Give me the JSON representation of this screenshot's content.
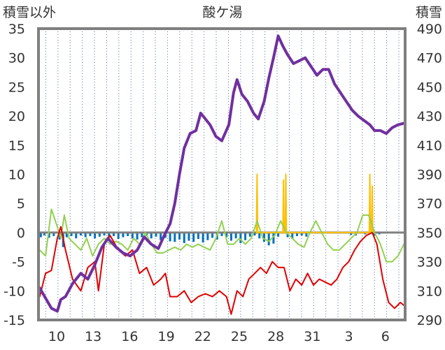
{
  "chart_data": {
    "type": "line",
    "title": "酸ケ湯",
    "ylabel_left": "積雪以外",
    "ylabel_right": "積雪",
    "x_ticks": [
      "10",
      "13",
      "16",
      "19",
      "22",
      "25",
      "28",
      "31",
      "3",
      "6"
    ],
    "y_left": {
      "min": -15,
      "max": 35,
      "ticks": [
        "35",
        "30",
        "25",
        "20",
        "15",
        "10",
        "5",
        "0",
        "-5",
        "-10",
        "-15"
      ]
    },
    "y_right": {
      "min": 290,
      "max": 490,
      "ticks": [
        "490",
        "470",
        "450",
        "430",
        "410",
        "390",
        "370",
        "350",
        "330",
        "310",
        "290"
      ]
    },
    "x_range": [
      8.4,
      39.6
    ],
    "grid": {
      "vertical": "dotted",
      "horizontal": "none"
    },
    "series": [
      {
        "color": "#7030a0",
        "axis": "right",
        "points": [
          [
            8.5,
            312
          ],
          [
            9.0,
            305
          ],
          [
            9.5,
            298
          ],
          [
            10.0,
            296
          ],
          [
            10.3,
            304
          ],
          [
            10.7,
            306
          ],
          [
            11.3,
            315
          ],
          [
            12.0,
            322
          ],
          [
            12.6,
            318
          ],
          [
            13.2,
            328
          ],
          [
            13.8,
            340
          ],
          [
            14.3,
            346
          ],
          [
            15.0,
            340
          ],
          [
            15.6,
            336
          ],
          [
            16.2,
            334
          ],
          [
            16.8,
            338
          ],
          [
            17.4,
            347
          ],
          [
            18.0,
            342
          ],
          [
            18.6,
            339
          ],
          [
            19.1,
            348
          ],
          [
            19.6,
            356
          ],
          [
            20.0,
            370
          ],
          [
            20.4,
            390
          ],
          [
            20.8,
            408
          ],
          [
            21.3,
            418
          ],
          [
            21.8,
            420
          ],
          [
            22.2,
            432
          ],
          [
            22.6,
            428
          ],
          [
            23.0,
            424
          ],
          [
            23.5,
            416
          ],
          [
            24.0,
            413
          ],
          [
            24.6,
            424
          ],
          [
            25.0,
            446
          ],
          [
            25.3,
            455
          ],
          [
            25.7,
            445
          ],
          [
            26.2,
            440
          ],
          [
            26.7,
            432
          ],
          [
            27.1,
            428
          ],
          [
            27.6,
            440
          ],
          [
            28.0,
            456
          ],
          [
            28.4,
            470
          ],
          [
            28.8,
            485
          ],
          [
            29.2,
            478
          ],
          [
            29.6,
            472
          ],
          [
            30.1,
            466
          ],
          [
            30.6,
            468
          ],
          [
            31.1,
            470
          ],
          [
            31.6,
            464
          ],
          [
            32.1,
            458
          ],
          [
            32.6,
            462
          ],
          [
            33.1,
            462
          ],
          [
            33.6,
            452
          ],
          [
            34.1,
            446
          ],
          [
            34.6,
            440
          ],
          [
            35.1,
            434
          ],
          [
            35.6,
            430
          ],
          [
            36.1,
            427
          ],
          [
            36.6,
            424
          ],
          [
            37.0,
            420
          ],
          [
            37.5,
            420
          ],
          [
            38.0,
            418
          ],
          [
            38.5,
            422
          ],
          [
            39.0,
            424
          ],
          [
            39.5,
            425
          ]
        ]
      },
      {
        "color": "#e00000",
        "axis": "left",
        "points": [
          [
            8.5,
            -11
          ],
          [
            9.0,
            -7
          ],
          [
            9.5,
            -6.5
          ],
          [
            10.0,
            -1
          ],
          [
            10.3,
            1
          ],
          [
            10.7,
            -3
          ],
          [
            11.3,
            -8
          ],
          [
            12.0,
            -10
          ],
          [
            12.6,
            -6
          ],
          [
            13.2,
            -5
          ],
          [
            13.5,
            -10
          ],
          [
            14.0,
            -2
          ],
          [
            14.5,
            -0.5
          ],
          [
            15.2,
            -3
          ],
          [
            15.8,
            -4
          ],
          [
            16.4,
            -3
          ],
          [
            17.0,
            -7
          ],
          [
            17.6,
            -6
          ],
          [
            18.2,
            -9
          ],
          [
            18.8,
            -8
          ],
          [
            19.2,
            -7
          ],
          [
            19.6,
            -11
          ],
          [
            20.2,
            -11
          ],
          [
            20.8,
            -10
          ],
          [
            21.4,
            -12
          ],
          [
            22.0,
            -11
          ],
          [
            22.6,
            -10.5
          ],
          [
            23.2,
            -11
          ],
          [
            23.8,
            -10
          ],
          [
            24.4,
            -11
          ],
          [
            24.8,
            -14
          ],
          [
            25.3,
            -10
          ],
          [
            25.8,
            -11
          ],
          [
            26.3,
            -8
          ],
          [
            26.8,
            -7
          ],
          [
            27.3,
            -6
          ],
          [
            27.8,
            -7
          ],
          [
            28.3,
            -5
          ],
          [
            28.8,
            -6
          ],
          [
            29.3,
            -6
          ],
          [
            29.8,
            -10
          ],
          [
            30.3,
            -8
          ],
          [
            30.8,
            -9
          ],
          [
            31.3,
            -7
          ],
          [
            31.8,
            -9
          ],
          [
            32.3,
            -8
          ],
          [
            32.8,
            -8.5
          ],
          [
            33.3,
            -9
          ],
          [
            33.8,
            -8
          ],
          [
            34.3,
            -6
          ],
          [
            34.8,
            -5
          ],
          [
            35.3,
            -3
          ],
          [
            35.8,
            -1.5
          ],
          [
            36.3,
            -0.5
          ],
          [
            36.8,
            0
          ],
          [
            37.2,
            -2
          ],
          [
            37.7,
            -8
          ],
          [
            38.2,
            -12
          ],
          [
            38.7,
            -13
          ],
          [
            39.2,
            -12
          ],
          [
            39.5,
            -12.5
          ]
        ]
      },
      {
        "color": "#92d050",
        "axis": "left",
        "points": [
          [
            8.5,
            -3
          ],
          [
            9.0,
            -4
          ],
          [
            9.5,
            4
          ],
          [
            10.0,
            1
          ],
          [
            10.3,
            -1
          ],
          [
            10.6,
            3
          ],
          [
            11.0,
            -1
          ],
          [
            11.5,
            -2
          ],
          [
            12.0,
            -3
          ],
          [
            12.5,
            -1
          ],
          [
            13.0,
            -4
          ],
          [
            13.5,
            -2
          ],
          [
            14.0,
            -1
          ],
          [
            14.5,
            -2
          ],
          [
            15.0,
            -1.5
          ],
          [
            15.5,
            -2
          ],
          [
            16.0,
            -3
          ],
          [
            16.5,
            -1
          ],
          [
            17.0,
            -2
          ],
          [
            17.5,
            0
          ],
          [
            18.0,
            -2
          ],
          [
            18.5,
            -3.5
          ],
          [
            19.0,
            -3.5
          ],
          [
            19.5,
            -3
          ],
          [
            20.0,
            -2.5
          ],
          [
            20.5,
            -3
          ],
          [
            21.0,
            -2
          ],
          [
            21.5,
            -2.5
          ],
          [
            22.0,
            -2
          ],
          [
            22.5,
            -2.5
          ],
          [
            23.0,
            -3
          ],
          [
            23.5,
            -1
          ],
          [
            24.0,
            2
          ],
          [
            24.5,
            -2
          ],
          [
            25.0,
            -2
          ],
          [
            25.5,
            -1
          ],
          [
            26.0,
            -2
          ],
          [
            26.5,
            -1
          ],
          [
            27.0,
            2
          ],
          [
            27.5,
            -1
          ],
          [
            28.0,
            -1.5
          ],
          [
            28.5,
            -0.5
          ],
          [
            29.0,
            2
          ],
          [
            29.5,
            0
          ],
          [
            30.0,
            -1
          ],
          [
            30.5,
            -2
          ],
          [
            31.0,
            -2.5
          ],
          [
            31.5,
            0
          ],
          [
            32.0,
            2
          ],
          [
            32.5,
            0
          ],
          [
            33.0,
            -2
          ],
          [
            33.5,
            -3
          ],
          [
            34.0,
            -3
          ],
          [
            34.5,
            -2
          ],
          [
            35.0,
            -1
          ],
          [
            35.5,
            0
          ],
          [
            36.0,
            3
          ],
          [
            36.5,
            3
          ],
          [
            37.0,
            0
          ],
          [
            37.5,
            -2
          ],
          [
            38.0,
            -5
          ],
          [
            38.5,
            -5
          ],
          [
            39.0,
            -4
          ],
          [
            39.5,
            -2
          ]
        ]
      },
      {
        "color": "#ffc000",
        "axis": "left",
        "points": [
          [
            26.95,
            0
          ],
          [
            27.0,
            10
          ],
          [
            27.05,
            0
          ],
          [
            29.2,
            0
          ],
          [
            29.25,
            9
          ],
          [
            29.3,
            0
          ],
          [
            29.4,
            0
          ],
          [
            29.45,
            10
          ],
          [
            29.5,
            0
          ],
          [
            36.55,
            0
          ],
          [
            36.6,
            10
          ],
          [
            36.65,
            0
          ],
          [
            36.75,
            0
          ],
          [
            36.8,
            8
          ],
          [
            36.85,
            0
          ]
        ]
      }
    ],
    "bars": {
      "color": "#0070c0",
      "axis": "left",
      "values": [
        [
          8.6,
          -0.8
        ],
        [
          8.9,
          -0.5
        ],
        [
          9.3,
          -0.9
        ],
        [
          9.7,
          -0.6
        ],
        [
          10.2,
          -1.2
        ],
        [
          10.5,
          -2.5
        ],
        [
          10.8,
          -0.8
        ],
        [
          11.2,
          -0.6
        ],
        [
          11.6,
          -1.0
        ],
        [
          12.0,
          -0.5
        ],
        [
          12.4,
          -0.8
        ],
        [
          12.8,
          -0.6
        ],
        [
          13.2,
          -1.0
        ],
        [
          13.6,
          -0.7
        ],
        [
          14.0,
          -0.5
        ],
        [
          14.4,
          -0.9
        ],
        [
          14.8,
          -0.6
        ],
        [
          15.2,
          -1.1
        ],
        [
          15.6,
          -0.8
        ],
        [
          16.0,
          -0.6
        ],
        [
          16.4,
          -1.0
        ],
        [
          16.8,
          -1.2
        ],
        [
          17.2,
          -0.8
        ],
        [
          17.6,
          -0.6
        ],
        [
          18.0,
          -1.0
        ],
        [
          18.4,
          -0.7
        ],
        [
          18.8,
          -1.3
        ],
        [
          19.2,
          -0.9
        ],
        [
          19.6,
          -1.5
        ],
        [
          20.0,
          -1.6
        ],
        [
          20.4,
          -1.2
        ],
        [
          20.8,
          -1.8
        ],
        [
          21.2,
          -1.4
        ],
        [
          21.6,
          -1.6
        ],
        [
          22.0,
          -1.1
        ],
        [
          22.4,
          -1.7
        ],
        [
          22.8,
          -1.3
        ],
        [
          23.2,
          -0.9
        ],
        [
          23.6,
          -1.2
        ],
        [
          24.0,
          -0.6
        ],
        [
          24.4,
          -0.8
        ],
        [
          24.8,
          -1.4
        ],
        [
          25.2,
          -1.0
        ],
        [
          25.6,
          -1.8
        ],
        [
          26.0,
          -1.3
        ],
        [
          26.4,
          -0.7
        ],
        [
          26.8,
          -0.5
        ],
        [
          27.2,
          -1.0
        ],
        [
          27.6,
          -1.6
        ],
        [
          28.0,
          -2.2
        ],
        [
          28.4,
          -1.9
        ],
        [
          28.8,
          -0.7
        ],
        [
          29.6,
          -0.8
        ],
        [
          30.0,
          -1.1
        ],
        [
          30.4,
          -0.6
        ],
        [
          30.8,
          -0.5
        ],
        [
          31.2,
          -0.7
        ],
        [
          35.0,
          -0.4
        ],
        [
          35.4,
          -0.5
        ],
        [
          36.2,
          -0.3
        ],
        [
          37.0,
          -0.5
        ],
        [
          37.4,
          -0.3
        ]
      ]
    }
  }
}
